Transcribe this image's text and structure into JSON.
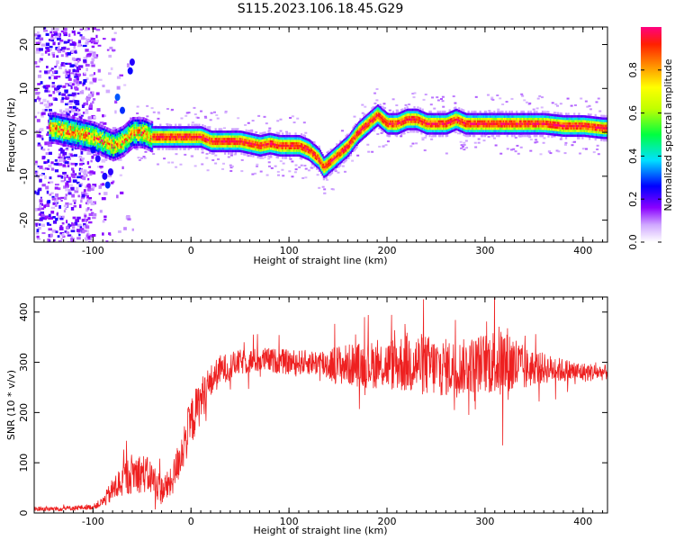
{
  "title": "S115.2023.106.18.45.G29",
  "chart_data": [
    {
      "type": "heatmap",
      "xlabel": "Height of straight line (km)",
      "ylabel": "Frequency (Hz)",
      "xlim": [
        -160,
        425
      ],
      "ylim": [
        -25,
        24
      ],
      "xticks": [
        -100,
        0,
        100,
        200,
        300,
        400
      ],
      "yticks": [
        -20,
        -10,
        0,
        10,
        20
      ],
      "colorbar": {
        "label": "Normalized spectral amplitude",
        "ticks": [
          0.0,
          0.2,
          0.4,
          0.6,
          0.8
        ],
        "range": [
          0,
          1
        ]
      },
      "ridge": {
        "x": [
          -140,
          -120,
          -100,
          -90,
          -80,
          -70,
          -60,
          -50,
          -40,
          -30,
          -20,
          -10,
          0,
          10,
          20,
          30,
          40,
          50,
          60,
          70,
          80,
          90,
          100,
          110,
          120,
          125,
          130,
          135,
          140,
          145,
          150,
          160,
          170,
          180,
          185,
          190,
          195,
          200,
          210,
          220,
          230,
          240,
          250,
          260,
          270,
          280,
          290,
          300,
          320,
          340,
          360,
          380,
          400,
          420
        ],
        "y": [
          1,
          0,
          -1,
          -2,
          -3,
          -2,
          0,
          0,
          -1,
          -1,
          -1,
          -1,
          -1,
          -1,
          -2,
          -2,
          -2,
          -2,
          -2.5,
          -3,
          -2.5,
          -3,
          -3,
          -3,
          -4,
          -5,
          -6,
          -8,
          -7,
          -6,
          -5,
          -3,
          0,
          2,
          3,
          4,
          3,
          2,
          2,
          3,
          3,
          2,
          2,
          2,
          3,
          2,
          2,
          2,
          2,
          2,
          2,
          1.5,
          1.5,
          1
        ]
      }
    },
    {
      "type": "line",
      "xlabel": "Height of straight line (km)",
      "ylabel": "SNR (10 * v/v)",
      "xlim": [
        -160,
        425
      ],
      "ylim": [
        0,
        430
      ],
      "xticks": [
        -100,
        0,
        100,
        200,
        300,
        400
      ],
      "yticks": [
        0,
        100,
        200,
        300,
        400
      ],
      "series": [
        {
          "color": "#ee2020",
          "x": [
            -160,
            -140,
            -120,
            -100,
            -90,
            -80,
            -70,
            -60,
            -50,
            -40,
            -30,
            -20,
            -10,
            0,
            10,
            20,
            30,
            50,
            75,
            100,
            125,
            150,
            175,
            200,
            225,
            250,
            275,
            300,
            310,
            320,
            330,
            340,
            350,
            375,
            400,
            425
          ],
          "y": [
            8,
            8,
            10,
            12,
            22,
            45,
            65,
            80,
            80,
            70,
            45,
            60,
            120,
            180,
            225,
            260,
            285,
            300,
            305,
            300,
            300,
            295,
            295,
            295,
            300,
            290,
            290,
            300,
            300,
            300,
            295,
            285,
            290,
            285,
            280,
            280
          ],
          "spread": [
            5,
            5,
            5,
            5,
            10,
            25,
            35,
            40,
            40,
            35,
            30,
            30,
            45,
            50,
            45,
            35,
            30,
            25,
            25,
            25,
            25,
            40,
            45,
            50,
            65,
            60,
            55,
            60,
            70,
            80,
            65,
            45,
            35,
            25,
            20,
            15
          ]
        }
      ]
    }
  ]
}
